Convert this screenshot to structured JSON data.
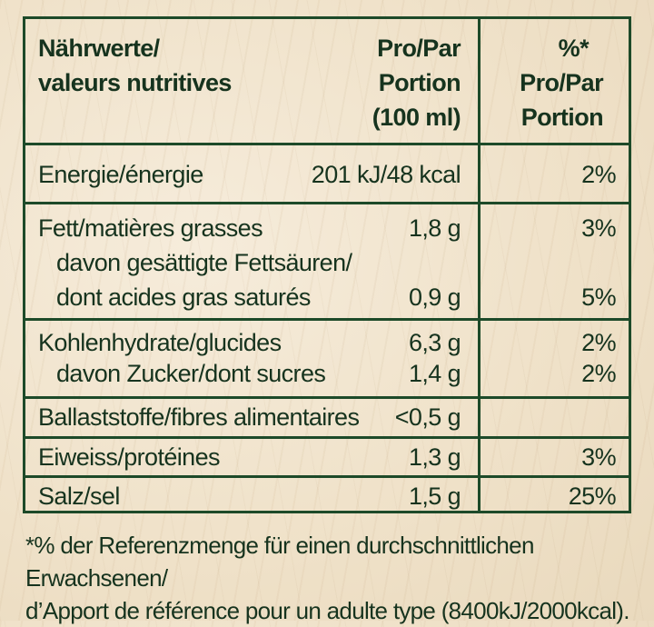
{
  "header": {
    "label": [
      "Nährwerte/",
      "valeurs nutritives"
    ],
    "per_portion": [
      "Pro/Par",
      "Portion",
      "(100 ml)"
    ],
    "percent": [
      "%*",
      "Pro/Par",
      "Portion"
    ]
  },
  "rows": [
    {
      "label": "Energie/énergie",
      "value": "201 kJ/48 kcal",
      "percent": "2%"
    },
    {
      "label": "Fett/matières grasses",
      "value": "1,8 g",
      "percent": "3%"
    },
    {
      "label": "davon gesättigte Fettsäuren/",
      "value": "",
      "percent": ""
    },
    {
      "label": "dont acides gras saturés",
      "value": "0,9 g",
      "percent": "5%"
    },
    {
      "label": "Kohlenhydrate/glucides",
      "value": "6,3 g",
      "percent": "2%"
    },
    {
      "label": "davon Zucker/dont sucres",
      "value": "1,4 g",
      "percent": "2%"
    },
    {
      "label": "Ballaststoffe/fibres alimentaires",
      "value": "<0,5 g",
      "percent": ""
    },
    {
      "label": "Eiweiss/protéines",
      "value": "1,3 g",
      "percent": "3%"
    },
    {
      "label": "Salz/sel",
      "value": "1,5 g",
      "percent": "25%"
    }
  ],
  "footnote": [
    "*% der Referenzmenge für einen durchschnittlichen Erwachsenen/",
    "d’Apport de référence pour un adulte type (8400kJ/2000kcal)."
  ],
  "colors": {
    "text": "#16331e",
    "border": "#1d4a29",
    "background": "#efe1c8"
  }
}
